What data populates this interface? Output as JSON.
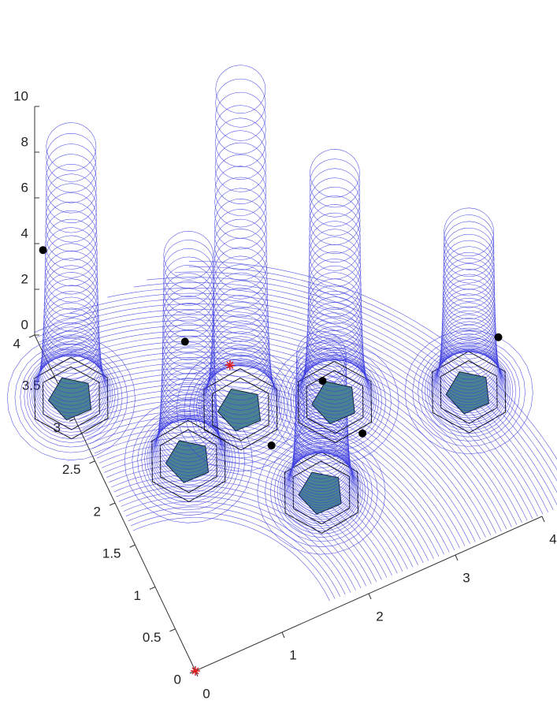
{
  "chart_data": {
    "type": "contour3",
    "xlim": [
      0,
      4
    ],
    "ylim": [
      0,
      4
    ],
    "zlim": [
      0,
      10
    ],
    "xticks": [
      0,
      1,
      2,
      3,
      4
    ],
    "yticks": [
      0,
      0.5,
      1,
      1.5,
      2,
      2.5,
      3,
      3.5,
      4
    ],
    "zticks": [
      0,
      2,
      4,
      6,
      8,
      10
    ],
    "color": "#3b3be0",
    "obstacle_color": "#4a8390",
    "obstacles": {
      "x": [
        0.89,
        1.62,
        2.01,
        2.55,
        3.87,
        0.06
      ],
      "y": [
        2.09,
        2.37,
        1.2,
        2.03,
        1.54,
        3.22
      ],
      "peak": [
        9,
        14,
        6,
        10,
        7,
        11
      ]
    },
    "points": {
      "x": [
        0.05,
        0.9,
        1.75,
        2.67,
        2.53,
        4.4
      ],
      "y": [
        3.9,
        2.2,
        1.88,
        1.6,
        2.29,
        1.95
      ],
      "z": [
        4,
        4.8,
        0,
        0,
        0,
        0
      ]
    },
    "start": {
      "x": 0,
      "y": 0,
      "z": 0
    },
    "goal": {
      "x": 1.72,
      "y": 2.85,
      "z": 0
    }
  }
}
